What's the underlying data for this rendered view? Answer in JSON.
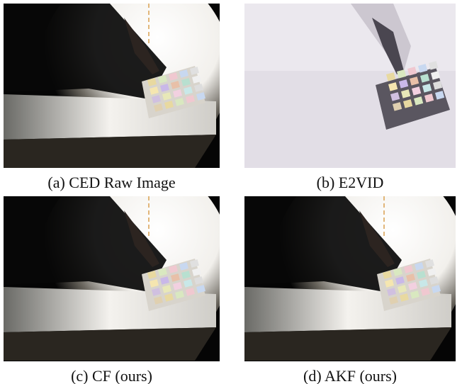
{
  "figure": {
    "panels": [
      {
        "caption": "(a) CED Raw Image"
      },
      {
        "caption": "(b) E2VID"
      },
      {
        "caption": "(c) CF (ours)"
      },
      {
        "caption": "(d) AKF (ours)"
      }
    ]
  }
}
